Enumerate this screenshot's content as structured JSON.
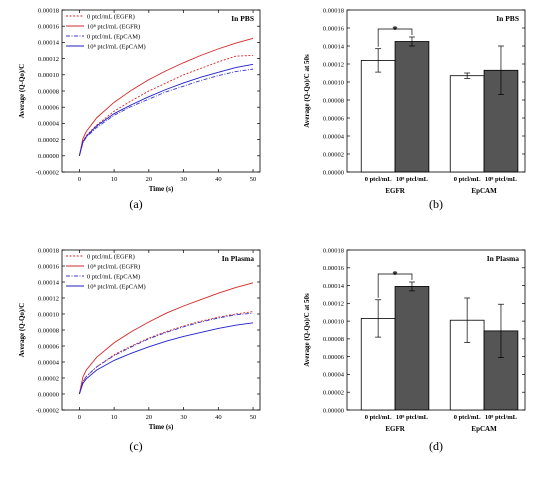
{
  "chart_data": [
    {
      "id": "a",
      "type": "line",
      "panel_label": "(a)",
      "condition": "In PBS",
      "xlabel": "Time (s)",
      "ylabel": "Average (Q-Qo)/C",
      "xlim": [
        -5,
        52
      ],
      "ylim": [
        -2e-05,
        0.00018
      ],
      "xticks": [
        0,
        10,
        20,
        30,
        40,
        50
      ],
      "yticks": [
        -2e-05,
        0,
        2e-05,
        4e-05,
        6e-05,
        8e-05,
        0.0001,
        0.00012,
        0.00014,
        0.00016,
        0.00018
      ],
      "ytick_labels": [
        "-0.00002",
        "0.00000",
        "0.00002",
        "0.00004",
        "0.00006",
        "0.00008",
        "0.00010",
        "0.00012",
        "0.00014",
        "0.00016",
        "0.00018"
      ],
      "legend_position": "top-left",
      "series": [
        {
          "name": "0 ptcl/mL (EGFR)",
          "color": "#d62728",
          "dash": "dotted",
          "x": [
            0,
            1,
            2,
            5,
            10,
            15,
            20,
            25,
            30,
            35,
            40,
            45,
            50
          ],
          "y": [
            0,
            1.8e-05,
            2.5e-05,
            3.8e-05,
            5.5e-05,
            6.8e-05,
            8e-05,
            9e-05,
            0.0001,
            0.000108,
            0.000116,
            0.000123,
            0.000124
          ]
        },
        {
          "name": "10⁸ ptcl/mL (EGFR)",
          "color": "#d62728",
          "dash": "solid",
          "x": [
            0,
            1,
            2,
            5,
            10,
            15,
            20,
            25,
            30,
            35,
            40,
            45,
            50
          ],
          "y": [
            0,
            2.1e-05,
            3e-05,
            4.7e-05,
            6.6e-05,
            8.1e-05,
            9.4e-05,
            0.000105,
            0.000115,
            0.000124,
            0.000132,
            0.000139,
            0.000145
          ]
        },
        {
          "name": "0 ptcl/mL (EpCAM)",
          "color": "#3a3ad0",
          "dash": "dashdot",
          "x": [
            0,
            1,
            2,
            5,
            10,
            15,
            20,
            25,
            30,
            35,
            40,
            45,
            50
          ],
          "y": [
            0,
            1.6e-05,
            2.3e-05,
            3.5e-05,
            5e-05,
            6.1e-05,
            7e-05,
            7.9e-05,
            8.6e-05,
            9.3e-05,
            9.9e-05,
            0.000104,
            0.000107
          ]
        },
        {
          "name": "10⁸ ptcl/mL (EpCAM)",
          "color": "#1f1fcf",
          "dash": "solid",
          "x": [
            0,
            1,
            2,
            5,
            10,
            15,
            20,
            25,
            30,
            35,
            40,
            45,
            50
          ],
          "y": [
            0,
            1.7e-05,
            2.4e-05,
            3.7e-05,
            5.2e-05,
            6.3e-05,
            7.3e-05,
            8.2e-05,
            9e-05,
            9.7e-05,
            0.000103,
            0.000109,
            0.000113
          ]
        }
      ]
    },
    {
      "id": "b",
      "type": "bar",
      "panel_label": "(b)",
      "condition": "In PBS",
      "ylabel": "Average (Q-Qo)/C at 50s",
      "ylim": [
        0,
        0.00018
      ],
      "yticks": [
        0,
        2e-05,
        4e-05,
        6e-05,
        8e-05,
        0.0001,
        0.00012,
        0.00014,
        0.00016,
        0.00018
      ],
      "ytick_labels": [
        "0.00000",
        "0.00002",
        "0.00004",
        "0.00006",
        "0.00008",
        "0.00010",
        "0.00012",
        "0.00014",
        "0.00016",
        "0.00018"
      ],
      "groups": [
        "EGFR",
        "EpCAM"
      ],
      "categories": [
        "0 ptcl/mL",
        "10⁸ ptcl/mL"
      ],
      "series": [
        {
          "fill": "#ffffff",
          "values": [
            0.000124,
            0.000107
          ],
          "errors": [
            1.3e-05,
            3e-06
          ]
        },
        {
          "fill": "#555555",
          "values": [
            0.000145,
            0.000113
          ],
          "errors": [
            5e-06,
            2.7e-05
          ]
        }
      ],
      "significance": {
        "group": 0,
        "label": "*"
      }
    },
    {
      "id": "c",
      "type": "line",
      "panel_label": "(c)",
      "condition": "In Plasma",
      "xlabel": "Time (s)",
      "ylabel": "Average (Q-Qo)/C",
      "xlim": [
        -5,
        52
      ],
      "ylim": [
        -2e-05,
        0.00018
      ],
      "xticks": [
        0,
        10,
        20,
        30,
        40,
        50
      ],
      "yticks": [
        -2e-05,
        0,
        2e-05,
        4e-05,
        6e-05,
        8e-05,
        0.0001,
        0.00012,
        0.00014,
        0.00016,
        0.00018
      ],
      "ytick_labels": [
        "-0.00002",
        "0.00000",
        "0.00002",
        "0.00004",
        "0.00006",
        "0.00008",
        "0.00010",
        "0.00012",
        "0.00014",
        "0.00016",
        "0.00018"
      ],
      "legend_position": "top-left",
      "series": [
        {
          "name": "0 ptcl/mL (EGFR)",
          "color": "#d62728",
          "dash": "dotted",
          "x": [
            0,
            1,
            2,
            5,
            10,
            15,
            20,
            25,
            30,
            35,
            40,
            45,
            50
          ],
          "y": [
            0,
            1.5e-05,
            2.2e-05,
            3.4e-05,
            4.9e-05,
            6e-05,
            7e-05,
            7.8e-05,
            8.5e-05,
            9.1e-05,
            9.6e-05,
            0.0001,
            0.000103
          ]
        },
        {
          "name": "10⁸ ptcl/mL (EGFR)",
          "color": "#d62728",
          "dash": "solid",
          "x": [
            0,
            1,
            2,
            5,
            10,
            15,
            20,
            25,
            30,
            35,
            40,
            45,
            50
          ],
          "y": [
            0,
            2.1e-05,
            3e-05,
            4.6e-05,
            6.4e-05,
            7.8e-05,
            9e-05,
            0.000101,
            0.00011,
            0.000118,
            0.000126,
            0.000133,
            0.000139
          ]
        },
        {
          "name": "0 ptcl/mL (EpCAM)",
          "color": "#3a3ad0",
          "dash": "dashdot",
          "x": [
            0,
            1,
            2,
            5,
            10,
            15,
            20,
            25,
            30,
            35,
            40,
            45,
            50
          ],
          "y": [
            0,
            1.5e-05,
            2.2e-05,
            3.4e-05,
            4.8e-05,
            5.9e-05,
            6.9e-05,
            7.7e-05,
            8.4e-05,
            9e-05,
            9.5e-05,
            9.9e-05,
            0.000101
          ]
        },
        {
          "name": "10⁸ ptcl/mL (EpCAM)",
          "color": "#1f1fcf",
          "dash": "solid",
          "x": [
            0,
            1,
            2,
            5,
            10,
            15,
            20,
            25,
            30,
            35,
            40,
            45,
            50
          ],
          "y": [
            0,
            1.3e-05,
            1.9e-05,
            3e-05,
            4.2e-05,
            5.1e-05,
            5.9e-05,
            6.6e-05,
            7.2e-05,
            7.7e-05,
            8.2e-05,
            8.6e-05,
            8.9e-05
          ]
        }
      ]
    },
    {
      "id": "d",
      "type": "bar",
      "panel_label": "(d)",
      "condition": "In Plasma",
      "ylabel": "Average (Q-Qo)/C at 50s",
      "ylim": [
        0,
        0.00018
      ],
      "yticks": [
        0,
        2e-05,
        4e-05,
        6e-05,
        8e-05,
        0.0001,
        0.00012,
        0.00014,
        0.00016,
        0.00018
      ],
      "ytick_labels": [
        "0.00000",
        "0.00002",
        "0.00004",
        "0.00006",
        "0.00008",
        "0.00010",
        "0.00012",
        "0.00014",
        "0.00016",
        "0.00018"
      ],
      "groups": [
        "EGFR",
        "EpCAM"
      ],
      "categories": [
        "0 ptcl/mL",
        "10⁸ ptcl/mL"
      ],
      "series": [
        {
          "fill": "#ffffff",
          "values": [
            0.000103,
            0.000101
          ],
          "errors": [
            2.1e-05,
            2.5e-05
          ]
        },
        {
          "fill": "#555555",
          "values": [
            0.000139,
            8.9e-05
          ],
          "errors": [
            5e-06,
            3e-05
          ]
        }
      ],
      "significance": {
        "group": 0,
        "label": "*"
      }
    }
  ]
}
